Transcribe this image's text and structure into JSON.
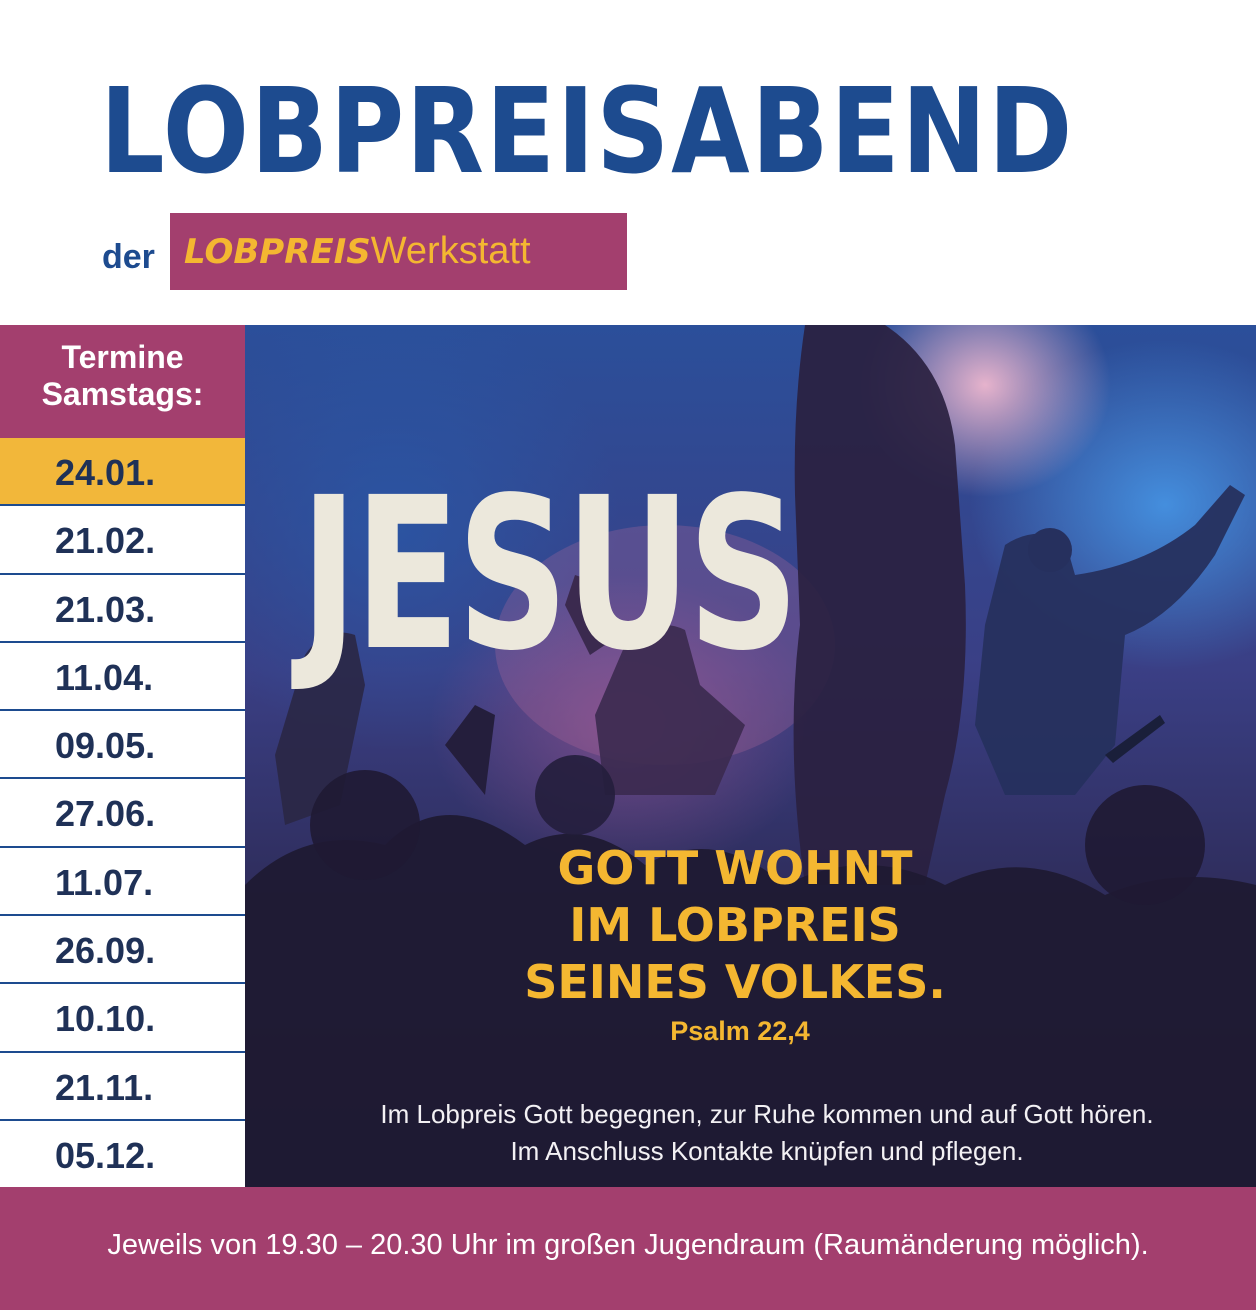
{
  "header": {
    "title": "LOBPREISABEND",
    "subtitle_prefix": "der",
    "brand_bold": "LOBPREIS",
    "brand_light": "Werkstatt"
  },
  "schedule": {
    "heading_line1": "Termine",
    "heading_line2": "Samstags:",
    "dates": [
      "24.01.",
      "21.02.",
      "21.03.",
      "11.04.",
      "09.05.",
      "27.06.",
      "11.07.",
      "26.09.",
      "10.10.",
      "21.11.",
      "05.12."
    ],
    "highlighted_index": 0
  },
  "image": {
    "headline": "JESUS",
    "verse_lines": [
      "GOTT WOHNT",
      "IM LOBPREIS",
      "SEINES VOLKES."
    ],
    "verse_reference": "Psalm 22,4",
    "description_lines": [
      "Im Lobpreis Gott begegnen, zur Ruhe kommen und auf Gott hören.",
      "Im Anschluss Kontakte knüpfen und pflegen."
    ]
  },
  "footer": {
    "text": "Jeweils von 19.30 – 20.30 Uhr im großen Jugendraum (Raumänderung möglich)."
  },
  "colors": {
    "navy": "#1d4b8f",
    "magenta": "#a33f6e",
    "gold": "#f4b731",
    "highlight_row": "#f2b73a"
  }
}
